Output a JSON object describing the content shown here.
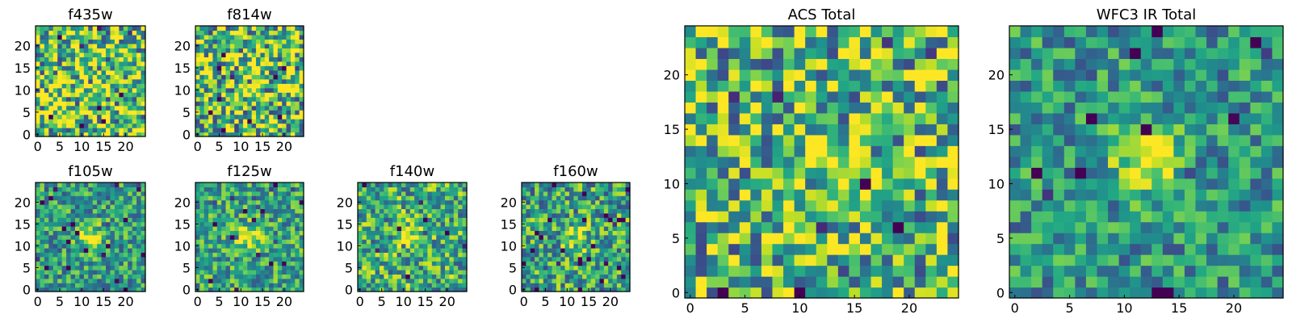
{
  "figure": {
    "description_hidden": false
  },
  "colors": {
    "colormap": "viridis",
    "frame": "#000000",
    "background": "#ffffff"
  },
  "chart_data": [
    {
      "type": "heatmap",
      "title": "f435w",
      "size": 25,
      "xticks": [
        0,
        5,
        10,
        15,
        20
      ],
      "yticks": [
        0,
        5,
        10,
        15,
        20
      ],
      "noise": 1.0,
      "peak": 0.0,
      "seed": 11,
      "base": 0.72
    },
    {
      "type": "heatmap",
      "title": "f814w",
      "size": 25,
      "xticks": [
        0,
        5,
        10,
        15,
        20
      ],
      "yticks": [
        0,
        5,
        10,
        15,
        20
      ],
      "noise": 1.0,
      "peak": 0.25,
      "seed": 23,
      "base": 0.7
    },
    {
      "type": "heatmap",
      "title": "f105w",
      "size": 25,
      "xticks": [
        0,
        5,
        10,
        15,
        20
      ],
      "yticks": [
        0,
        5,
        10,
        15,
        20
      ],
      "noise": 0.6,
      "peak": 0.45,
      "seed": 37,
      "base": 0.55
    },
    {
      "type": "heatmap",
      "title": "f125w",
      "size": 25,
      "xticks": [
        0,
        5,
        10,
        15,
        20
      ],
      "yticks": [
        0,
        5,
        10,
        15,
        20
      ],
      "noise": 0.6,
      "peak": 0.4,
      "seed": 41,
      "base": 0.58
    },
    {
      "type": "heatmap",
      "title": "f140w",
      "size": 25,
      "xticks": [
        0,
        5,
        10,
        15,
        20
      ],
      "yticks": [
        0,
        5,
        10,
        15,
        20
      ],
      "noise": 0.7,
      "peak": 0.35,
      "seed": 53,
      "base": 0.62
    },
    {
      "type": "heatmap",
      "title": "f160w",
      "size": 25,
      "xticks": [
        0,
        5,
        10,
        15,
        20
      ],
      "yticks": [
        0,
        5,
        10,
        15,
        20
      ],
      "noise": 0.7,
      "peak": 0.35,
      "seed": 67,
      "base": 0.58
    },
    {
      "type": "heatmap",
      "title": "ACS Total",
      "size": 25,
      "xticks": [
        0,
        5,
        10,
        15,
        20
      ],
      "yticks": [
        0,
        5,
        10,
        15,
        20
      ],
      "noise": 0.9,
      "peak": 0.25,
      "seed": 79,
      "base": 0.66
    },
    {
      "type": "heatmap",
      "title": "WFC3 IR Total",
      "size": 25,
      "xticks": [
        0,
        5,
        10,
        15,
        20
      ],
      "yticks": [
        0,
        5,
        10,
        15,
        20
      ],
      "noise": 0.55,
      "peak": 0.55,
      "seed": 97,
      "base": 0.52
    }
  ]
}
